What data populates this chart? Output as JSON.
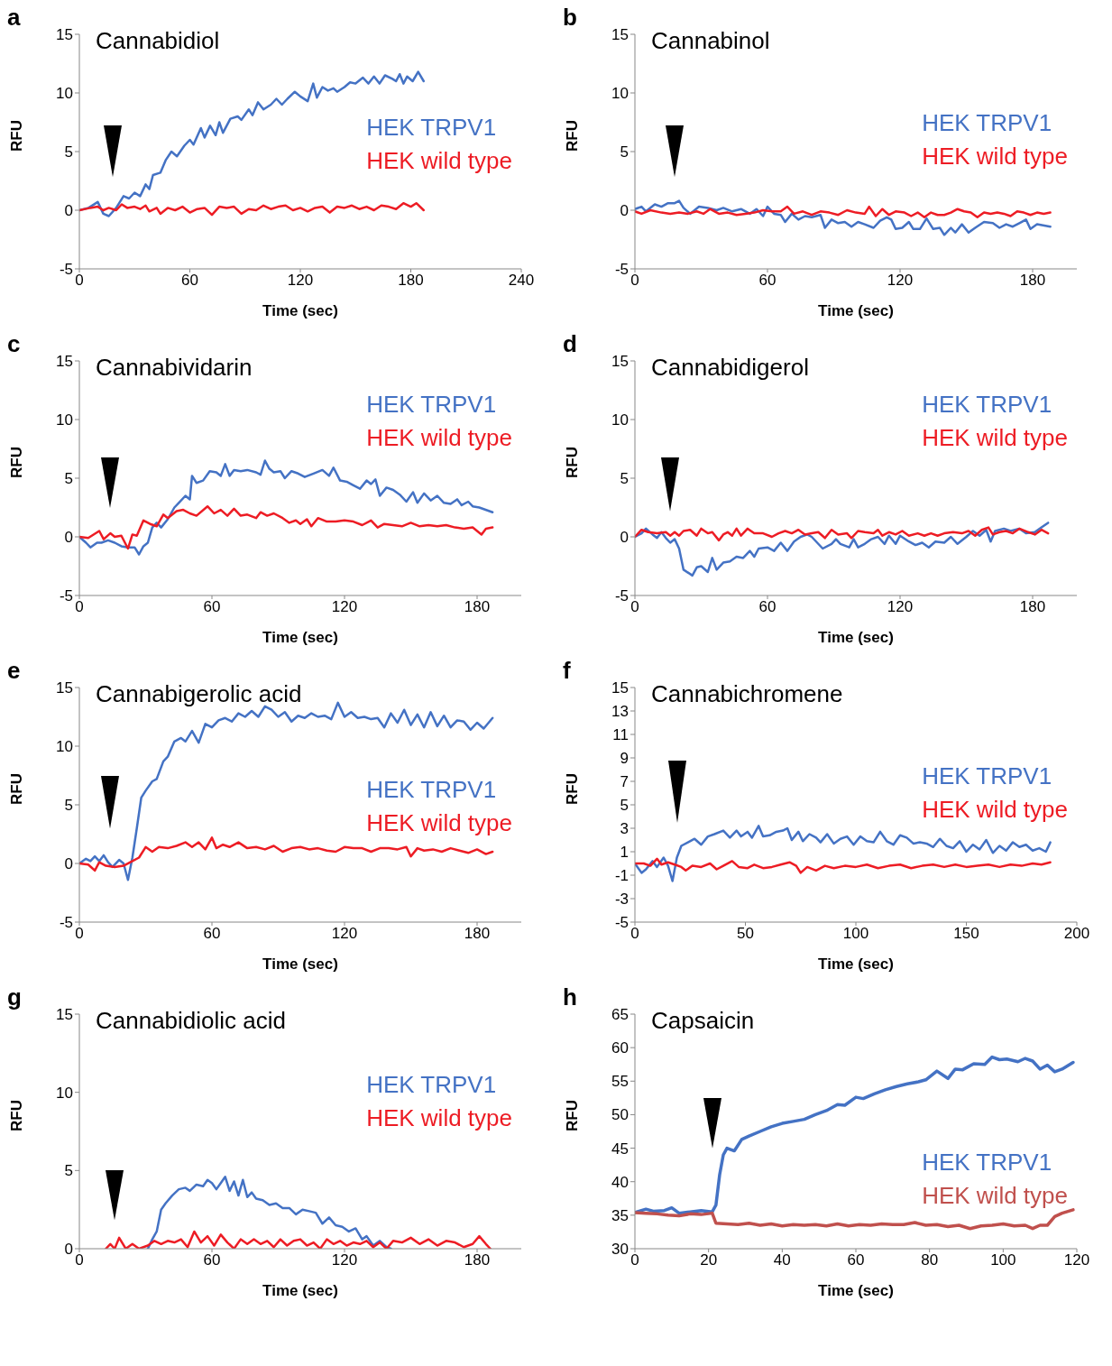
{
  "chart_data": [
    {
      "type": "line",
      "title": "Cannabidiol",
      "xlabel": "Time (sec)",
      "ylabel": "RFU",
      "annotations": [
        "a"
      ],
      "legend": "right",
      "xlim": [
        0,
        240
      ],
      "xticks": [
        0,
        60,
        120,
        180,
        240
      ],
      "ylim": [
        -5,
        15
      ],
      "yticks": [
        -5,
        0,
        5,
        10,
        15
      ],
      "series": [
        {
          "name": "HEK TRPV1",
          "color": "#4472c4",
          "x": [
            0,
            5,
            10,
            13,
            16,
            20,
            24,
            27,
            30,
            33,
            36,
            38,
            40,
            44,
            47,
            50,
            53,
            57,
            60,
            62,
            66,
            68,
            71,
            74,
            76,
            78,
            82,
            86,
            88,
            92,
            94,
            97,
            100,
            104,
            107,
            110,
            113,
            117,
            120,
            124,
            127,
            129,
            132,
            135,
            138,
            140,
            144,
            147,
            150,
            154,
            157,
            160,
            163,
            166,
            170,
            172,
            174,
            176,
            178,
            181,
            184,
            187
          ],
          "values": [
            0,
            0.2,
            0.7,
            -0.3,
            -0.5,
            0.2,
            1.2,
            1.0,
            1.5,
            1.2,
            2.2,
            1.8,
            3.0,
            3.2,
            4.3,
            5.0,
            4.6,
            5.5,
            6.0,
            5.6,
            7.0,
            6.2,
            7.2,
            6.4,
            7.5,
            6.6,
            7.8,
            8.0,
            7.7,
            8.6,
            8.1,
            9.2,
            8.6,
            9.0,
            9.5,
            9.0,
            9.5,
            10.1,
            9.7,
            9.3,
            10.8,
            9.6,
            10.5,
            10.2,
            10.4,
            10.1,
            10.5,
            10.9,
            10.8,
            11.3,
            10.8,
            11.4,
            10.8,
            11.5,
            11.2,
            11.0,
            11.6,
            10.8,
            11.4,
            11.0,
            11.8,
            11.0
          ]
        },
        {
          "name": "HEK wild type",
          "color": "#ed1c24",
          "x": [
            0,
            6,
            10,
            13,
            16,
            20,
            23,
            26,
            30,
            33,
            36,
            38,
            42,
            44,
            48,
            52,
            56,
            60,
            64,
            68,
            72,
            76,
            80,
            84,
            88,
            92,
            96,
            100,
            104,
            108,
            112,
            116,
            120,
            124,
            128,
            132,
            136,
            140,
            144,
            148,
            152,
            156,
            160,
            164,
            168,
            172,
            176,
            180,
            183,
            187
          ],
          "values": [
            0,
            0.2,
            0.3,
            0.0,
            0.2,
            0,
            0.5,
            0.2,
            0.3,
            0.1,
            0.4,
            -0.1,
            0.2,
            -0.3,
            0.2,
            0.0,
            0.3,
            -0.2,
            0.1,
            0.2,
            -0.4,
            0.3,
            0.2,
            0.3,
            -0.3,
            0.1,
            0.0,
            0.4,
            0.1,
            0.3,
            0.4,
            0.0,
            0.2,
            -0.1,
            0.2,
            0.3,
            -0.2,
            0.3,
            0.2,
            0.4,
            0.1,
            0.3,
            0.0,
            0.4,
            0.3,
            0.1,
            0.6,
            0.3,
            0.6,
            0.0
          ]
        }
      ]
    },
    {
      "type": "line",
      "title": "Cannabinol",
      "xlabel": "Time (sec)",
      "ylabel": "RFU",
      "annotations": [
        "b"
      ],
      "legend": "right",
      "xlim": [
        0,
        200
      ],
      "xticks": [
        0,
        60,
        120,
        180
      ],
      "ylim": [
        -5,
        15
      ],
      "yticks": [
        -5,
        0,
        5,
        10,
        15
      ],
      "series": [
        {
          "name": "HEK TRPV1",
          "color": "#4472c4",
          "x": [
            0,
            3,
            5,
            9,
            12,
            15,
            18,
            20,
            22,
            25,
            29,
            33,
            37,
            40,
            44,
            48,
            52,
            55,
            58,
            60,
            63,
            66,
            68,
            71,
            74,
            77,
            80,
            84,
            86,
            89,
            92,
            95,
            98,
            101,
            104,
            108,
            111,
            114,
            116,
            118,
            121,
            124,
            126,
            129,
            132,
            135,
            138,
            140,
            143,
            145,
            148,
            151,
            154,
            158,
            162,
            165,
            168,
            171,
            174,
            177,
            179,
            182,
            188
          ],
          "values": [
            0.1,
            0.3,
            -0.1,
            0.5,
            0.3,
            0.6,
            0.6,
            0.8,
            0.2,
            -0.3,
            0.3,
            0.2,
            0,
            0.2,
            -0.1,
            0.1,
            -0.3,
            0.1,
            -0.5,
            0.3,
            -0.3,
            -0.4,
            -1.0,
            -0.3,
            -0.8,
            -0.5,
            -0.6,
            -0.4,
            -1.5,
            -0.8,
            -1.1,
            -1.0,
            -1.4,
            -1.0,
            -1.2,
            -1.5,
            -0.9,
            -0.6,
            -0.8,
            -1.6,
            -1.5,
            -1.0,
            -1.6,
            -1.6,
            -0.7,
            -1.6,
            -1.5,
            -2.1,
            -1.5,
            -1.9,
            -1.2,
            -1.9,
            -1.5,
            -1.0,
            -1.1,
            -1.5,
            -1.2,
            -1.4,
            -1.1,
            -0.8,
            -1.6,
            -1.2,
            -1.4
          ]
        },
        {
          "name": "HEK wild type",
          "color": "#ed1c24",
          "x": [
            0,
            3,
            7,
            12,
            16,
            20,
            24,
            28,
            31,
            34,
            38,
            42,
            46,
            50,
            54,
            58,
            62,
            66,
            69,
            72,
            76,
            80,
            84,
            88,
            92,
            96,
            100,
            104,
            106,
            109,
            112,
            115,
            118,
            122,
            125,
            128,
            131,
            134,
            137,
            140,
            143,
            146,
            149,
            152,
            155,
            158,
            161,
            164,
            167,
            170,
            173,
            176,
            179,
            182,
            185,
            188
          ],
          "values": [
            -0.1,
            -0.3,
            0,
            -0.2,
            -0.3,
            -0.2,
            -0.3,
            -0.1,
            -0.3,
            0.1,
            -0.3,
            -0.2,
            -0.4,
            -0.3,
            -0.2,
            0,
            -0.1,
            -0.1,
            0.3,
            -0.3,
            -0.1,
            -0.4,
            -0.1,
            -0.2,
            -0.4,
            0,
            -0.2,
            -0.3,
            0.3,
            -0.5,
            0.1,
            -0.4,
            -0.1,
            -0.2,
            -0.5,
            -0.2,
            -0.6,
            -0.2,
            -0.4,
            -0.4,
            -0.2,
            0.1,
            -0.1,
            -0.2,
            -0.6,
            -0.2,
            -0.3,
            -0.2,
            -0.3,
            -0.5,
            -0.1,
            -0.2,
            -0.4,
            -0.2,
            -0.3,
            -0.2
          ]
        }
      ]
    },
    {
      "type": "line",
      "title": "Cannabividarin",
      "xlabel": "Time (sec)",
      "ylabel": "RFU",
      "annotations": [
        "c"
      ],
      "legend": "right",
      "xlim": [
        0,
        200
      ],
      "xticks": [
        0,
        60,
        120,
        180
      ],
      "ylim": [
        -5,
        15
      ],
      "yticks": [
        -5,
        0,
        5,
        10,
        15
      ],
      "series": [
        {
          "name": "HEK TRPV1",
          "color": "#4472c4",
          "x": [
            0,
            3,
            5,
            8,
            10,
            13,
            16,
            19,
            22,
            25,
            27,
            29,
            31,
            33,
            35,
            37,
            40,
            43,
            45,
            48,
            50,
            51,
            53,
            56,
            59,
            62,
            64,
            66,
            68,
            70,
            73,
            76,
            80,
            82,
            84,
            86,
            88,
            91,
            93,
            96,
            99,
            102,
            106,
            110,
            113,
            115,
            118,
            121,
            124,
            127,
            130,
            132,
            134,
            136,
            139,
            142,
            145,
            148,
            151,
            153,
            156,
            159,
            162,
            165,
            168,
            171,
            173,
            176,
            178,
            181,
            187
          ],
          "values": [
            0,
            -0.5,
            -0.9,
            -0.5,
            -0.5,
            -0.3,
            -0.5,
            -0.8,
            -0.9,
            -0.9,
            -1.5,
            -0.8,
            -0.5,
            0.8,
            1.2,
            0.8,
            1.5,
            2.5,
            2.9,
            3.5,
            3.2,
            5.2,
            4.6,
            4.8,
            5.6,
            5.5,
            5.2,
            6.2,
            5.2,
            5.7,
            5.6,
            5.7,
            5.5,
            5.3,
            6.5,
            5.8,
            5.5,
            5.6,
            5.0,
            5.6,
            5.4,
            5.1,
            5.4,
            5.7,
            5.2,
            5.9,
            4.8,
            4.7,
            4.4,
            4.1,
            4.8,
            4.5,
            4.9,
            3.5,
            4.2,
            4.0,
            3.6,
            3.0,
            3.8,
            2.9,
            3.7,
            3.1,
            3.5,
            2.9,
            2.8,
            3.2,
            2.7,
            3.0,
            2.6,
            2.5,
            2.1
          ]
        },
        {
          "name": "HEK wild type",
          "color": "#ed1c24",
          "x": [
            0,
            4,
            9,
            11,
            14,
            16,
            19,
            22,
            24,
            26,
            29,
            32,
            35,
            38,
            40,
            44,
            47,
            50,
            53,
            58,
            61,
            64,
            67,
            70,
            73,
            76,
            80,
            82,
            85,
            88,
            92,
            95,
            98,
            100,
            103,
            105,
            108,
            112,
            116,
            120,
            124,
            128,
            132,
            135,
            138,
            142,
            146,
            150,
            154,
            158,
            162,
            166,
            170,
            174,
            178,
            182,
            184,
            187
          ],
          "values": [
            0,
            -0.1,
            0.5,
            -0.2,
            0.3,
            0,
            0.1,
            -1.0,
            0.2,
            0.1,
            1.4,
            1.1,
            0.9,
            1.9,
            1.6,
            2.2,
            2.3,
            2.0,
            1.8,
            2.6,
            2.0,
            2.3,
            1.8,
            2.4,
            1.8,
            1.9,
            1.6,
            2.1,
            1.8,
            2.0,
            1.6,
            1.2,
            1.4,
            1.1,
            1.5,
            0.9,
            1.6,
            1.3,
            1.3,
            1.4,
            1.3,
            1.0,
            1.4,
            0.8,
            1.1,
            1.0,
            0.9,
            1.2,
            0.9,
            1.0,
            0.9,
            1.0,
            0.8,
            0.7,
            0.8,
            0.2,
            0.7,
            0.8
          ]
        }
      ]
    },
    {
      "type": "line",
      "title": "Cannabidigerol",
      "xlabel": "Time (sec)",
      "ylabel": "RFU",
      "annotations": [
        "d"
      ],
      "legend": "right",
      "xlim": [
        0,
        200
      ],
      "xticks": [
        0,
        60,
        120,
        180
      ],
      "ylim": [
        -5,
        15
      ],
      "yticks": [
        -5,
        0,
        5,
        10,
        15
      ],
      "series": [
        {
          "name": "HEK TRPV1",
          "color": "#4472c4",
          "x": [
            0,
            3,
            5,
            8,
            10,
            12,
            14,
            16,
            18,
            20,
            22,
            26,
            28,
            30,
            33,
            35,
            37,
            40,
            43,
            46,
            49,
            52,
            54,
            56,
            60,
            63,
            66,
            69,
            72,
            75,
            78,
            80,
            85,
            89,
            91,
            93,
            97,
            99,
            101,
            104,
            107,
            110,
            113,
            115,
            118,
            120,
            124,
            127,
            130,
            133,
            136,
            140,
            143,
            146,
            150,
            153,
            156,
            159,
            161,
            163,
            167,
            170,
            174,
            177,
            181,
            184,
            187
          ],
          "values": [
            0,
            0.3,
            0.7,
            0.2,
            -0.1,
            0.4,
            -0.1,
            -0.5,
            -0.2,
            -1.0,
            -2.8,
            -3.3,
            -2.6,
            -2.5,
            -3.0,
            -1.8,
            -2.8,
            -2.2,
            -2.1,
            -1.7,
            -1.8,
            -1.2,
            -1.7,
            -1.0,
            -0.9,
            -1.2,
            -0.5,
            -1.2,
            -0.4,
            0,
            0.2,
            0,
            -1.0,
            -0.6,
            -0.2,
            -0.6,
            -0.9,
            -0.2,
            -0.9,
            -0.6,
            -0.2,
            0,
            -0.6,
            0.1,
            -0.6,
            0.1,
            -0.4,
            -0.7,
            -0.5,
            -0.9,
            -0.4,
            -0.5,
            0,
            -0.6,
            0,
            0.5,
            0.1,
            0.6,
            -0.4,
            0.5,
            0.7,
            0.5,
            0.7,
            0.3,
            0.4,
            0.8,
            1.2
          ]
        },
        {
          "name": "HEK wild type",
          "color": "#ed1c24",
          "x": [
            0,
            3,
            6,
            10,
            14,
            16,
            18,
            20,
            22,
            25,
            28,
            30,
            33,
            35,
            38,
            40,
            42,
            44,
            46,
            48,
            51,
            54,
            58,
            62,
            65,
            68,
            71,
            74,
            77,
            80,
            83,
            86,
            89,
            92,
            96,
            98,
            101,
            104,
            108,
            110,
            112,
            115,
            118,
            121,
            124,
            128,
            131,
            134,
            137,
            140,
            144,
            148,
            151,
            154,
            157,
            160,
            162,
            165,
            168,
            171,
            174,
            178,
            181,
            184,
            187
          ],
          "values": [
            0,
            0.6,
            0.4,
            0.3,
            0.4,
            0.1,
            0.4,
            0.1,
            0.5,
            0.6,
            0.1,
            0.7,
            0.3,
            0.4,
            -0.3,
            0.2,
            0.4,
            0.1,
            0.7,
            0.1,
            0.7,
            0.3,
            0.3,
            0,
            0.3,
            0.5,
            0.3,
            0.6,
            0.2,
            0.3,
            0.4,
            -0.1,
            0.6,
            0.2,
            0.3,
            -0.1,
            0.5,
            0.4,
            0.3,
            0.6,
            0.1,
            0.4,
            0.2,
            0.5,
            0.1,
            0.3,
            0.1,
            0.3,
            0.1,
            0.3,
            0.4,
            0.3,
            0.5,
            0.1,
            0.6,
            0.8,
            0.2,
            0.4,
            0.5,
            0.3,
            0.7,
            0.4,
            0.2,
            0.6,
            0.3
          ]
        }
      ]
    },
    {
      "type": "line",
      "title": "Cannabigerolic acid",
      "xlabel": "Time (sec)",
      "ylabel": "RFU",
      "annotations": [
        "e"
      ],
      "legend": "right",
      "xlim": [
        0,
        200
      ],
      "xticks": [
        0,
        60,
        120,
        180
      ],
      "ylim": [
        -5,
        15
      ],
      "yticks": [
        -5,
        0,
        5,
        10,
        15
      ],
      "series": [
        {
          "name": "HEK TRPV1",
          "color": "#4472c4",
          "x": [
            0,
            3,
            5,
            7,
            9,
            11,
            13,
            15,
            18,
            20,
            22,
            24,
            26,
            28,
            30,
            33,
            35,
            38,
            40,
            43,
            46,
            48,
            51,
            54,
            57,
            60,
            63,
            66,
            69,
            72,
            75,
            78,
            81,
            84,
            87,
            90,
            93,
            96,
            99,
            102,
            105,
            108,
            111,
            114,
            117,
            120,
            123,
            126,
            129,
            132,
            135,
            138,
            141,
            144,
            147,
            150,
            153,
            156,
            159,
            162,
            165,
            168,
            171,
            174,
            177,
            180,
            183,
            187
          ],
          "values": [
            0,
            0.4,
            0.2,
            0.6,
            0.2,
            0.7,
            0.1,
            -0.3,
            0.3,
            0,
            -1.4,
            0.5,
            3.0,
            5.6,
            6.2,
            7.0,
            7.2,
            8.7,
            9.1,
            10.4,
            10.7,
            10.4,
            11.3,
            10.3,
            11.9,
            11.6,
            12.2,
            12.4,
            12.1,
            12.8,
            12.5,
            13.0,
            12.5,
            13.4,
            13.1,
            12.5,
            12.9,
            12.1,
            12.6,
            12.4,
            12.8,
            12.5,
            12.6,
            12.3,
            13.7,
            12.5,
            12.9,
            12.4,
            12.5,
            12.3,
            12.4,
            11.6,
            12.8,
            12.0,
            13.1,
            11.8,
            12.7,
            11.6,
            12.9,
            11.7,
            12.6,
            11.6,
            12.2,
            12.1,
            11.4,
            12.0,
            11.5,
            12.4
          ]
        },
        {
          "name": "HEK wild type",
          "color": "#ed1c24",
          "x": [
            0,
            4,
            7,
            9,
            12,
            16,
            20,
            24,
            27,
            30,
            33,
            36,
            40,
            44,
            48,
            51,
            54,
            57,
            60,
            62,
            65,
            68,
            72,
            76,
            80,
            84,
            88,
            92,
            96,
            100,
            104,
            108,
            112,
            116,
            120,
            124,
            128,
            132,
            136,
            140,
            144,
            148,
            150,
            153,
            156,
            160,
            164,
            168,
            172,
            176,
            180,
            184,
            187
          ],
          "values": [
            0,
            -0.1,
            -0.6,
            0.1,
            -0.2,
            -0.3,
            -0.2,
            0.2,
            0.5,
            1.4,
            1.0,
            1.4,
            1.3,
            1.5,
            1.8,
            1.4,
            1.8,
            1.2,
            2.2,
            1.3,
            1.6,
            1.4,
            1.8,
            1.3,
            1.4,
            1.2,
            1.5,
            1.0,
            1.3,
            1.4,
            1.2,
            1.3,
            1.1,
            1.0,
            1.4,
            1.3,
            1.3,
            1.0,
            1.3,
            1.3,
            1.2,
            1.4,
            0.6,
            1.3,
            1.1,
            1.2,
            1.0,
            1.3,
            1.1,
            0.9,
            1.2,
            0.8,
            1.0
          ]
        }
      ]
    },
    {
      "type": "line",
      "title": "Cannabichromene",
      "xlabel": "Time (sec)",
      "ylabel": "RFU",
      "annotations": [
        "f"
      ],
      "legend": "right",
      "xlim": [
        0,
        200
      ],
      "xticks": [
        0,
        50,
        100,
        150,
        200
      ],
      "ylim": [
        -5,
        15
      ],
      "yticks": [
        -5,
        -3,
        -1,
        1,
        3,
        5,
        7,
        9,
        11,
        13,
        15
      ],
      "series": [
        {
          "name": "HEK TRPV1",
          "color": "#4472c4",
          "x": [
            0,
            3,
            5,
            8,
            10,
            13,
            15,
            17,
            19,
            21,
            24,
            27,
            30,
            33,
            36,
            40,
            43,
            46,
            48,
            51,
            53,
            56,
            58,
            61,
            64,
            67,
            69,
            71,
            74,
            76,
            79,
            82,
            84,
            87,
            90,
            93,
            96,
            99,
            102,
            105,
            108,
            111,
            114,
            117,
            120,
            123,
            126,
            129,
            132,
            135,
            138,
            141,
            144,
            147,
            150,
            153,
            156,
            159,
            162,
            165,
            168,
            171,
            174,
            177,
            180,
            183,
            186,
            188
          ],
          "values": [
            0,
            -0.8,
            -0.5,
            0.2,
            -0.3,
            0.5,
            -0.2,
            -1.5,
            0.5,
            1.5,
            1.8,
            2.1,
            1.6,
            2.3,
            2.5,
            2.8,
            2.2,
            2.8,
            2.3,
            2.7,
            2.2,
            3.2,
            2.3,
            2.4,
            2.7,
            2.8,
            3.0,
            2.0,
            2.7,
            1.9,
            2.5,
            2.2,
            1.8,
            2.5,
            1.7,
            2.1,
            2.3,
            1.6,
            2.3,
            1.9,
            1.8,
            2.7,
            1.9,
            1.6,
            2.4,
            2.2,
            1.7,
            1.8,
            1.7,
            1.4,
            2.1,
            1.5,
            1.3,
            1.9,
            1.0,
            1.6,
            1.2,
            2.0,
            0.9,
            1.5,
            1.1,
            1.8,
            1.4,
            1.6,
            1.1,
            1.3,
            1.0,
            1.8
          ]
        },
        {
          "name": "HEK wild type",
          "color": "#ed1c24",
          "x": [
            0,
            4,
            7,
            10,
            12,
            15,
            18,
            21,
            23,
            26,
            30,
            34,
            37,
            40,
            44,
            47,
            51,
            54,
            58,
            62,
            66,
            70,
            73,
            75,
            78,
            82,
            86,
            90,
            95,
            100,
            105,
            110,
            115,
            120,
            125,
            130,
            135,
            140,
            145,
            150,
            155,
            160,
            165,
            170,
            175,
            180,
            184,
            188
          ],
          "values": [
            0,
            0,
            -0.2,
            0.4,
            -0.1,
            0.1,
            -0.1,
            -0.3,
            -0.6,
            -0.2,
            -0.3,
            0,
            -0.5,
            -0.2,
            0.2,
            -0.3,
            -0.4,
            -0.1,
            -0.4,
            -0.3,
            -0.1,
            0.1,
            -0.2,
            -0.8,
            -0.3,
            -0.6,
            -0.2,
            -0.4,
            -0.2,
            -0.3,
            -0.1,
            -0.4,
            -0.2,
            -0.1,
            -0.4,
            -0.2,
            -0.1,
            -0.3,
            -0.1,
            -0.3,
            -0.2,
            -0.1,
            -0.3,
            -0.1,
            -0.2,
            0,
            -0.1,
            0.1
          ]
        }
      ]
    },
    {
      "type": "line",
      "title": "Cannabidiolic acid",
      "xlabel": "Time (sec)",
      "ylabel": "RFU",
      "annotations": [
        "g"
      ],
      "legend": "right",
      "xlim": [
        0,
        200
      ],
      "xticks": [
        0,
        60,
        120,
        180
      ],
      "ylim": [
        0,
        15
      ],
      "yticks": [
        0,
        5,
        10,
        15
      ],
      "series": [
        {
          "name": "HEK TRPV1",
          "color": "#4472c4",
          "x": [
            31,
            33,
            35,
            37,
            39,
            42,
            45,
            48,
            50,
            53,
            56,
            58,
            60,
            62,
            64,
            66,
            68,
            70,
            72,
            74,
            76,
            78,
            80,
            83,
            86,
            89,
            92,
            95,
            98,
            101,
            104,
            107,
            110,
            113,
            116,
            119,
            122,
            125,
            128,
            130,
            133,
            136,
            139,
            141
          ],
          "values": [
            0,
            0.6,
            1.1,
            2.5,
            2.9,
            3.4,
            3.8,
            3.9,
            3.7,
            4.1,
            4.0,
            4.4,
            4.2,
            3.8,
            4.2,
            4.6,
            3.7,
            4.3,
            3.4,
            4.4,
            3.3,
            3.6,
            3.2,
            3.1,
            2.8,
            2.9,
            2.6,
            2.6,
            2.2,
            2.5,
            2.4,
            2.3,
            1.6,
            2.0,
            1.5,
            1.4,
            1.1,
            1.3,
            0.6,
            0.8,
            0.2,
            0.5,
            0.1,
            0
          ]
        },
        {
          "name": "HEK wild type",
          "color": "#ed1c24",
          "x": [
            12,
            14,
            16,
            18,
            21,
            24,
            27,
            31,
            34,
            37,
            40,
            43,
            46,
            49,
            52,
            55,
            58,
            61,
            64,
            67,
            70,
            73,
            76,
            79,
            82,
            85,
            88,
            91,
            94,
            97,
            100,
            103,
            106,
            109,
            112,
            115,
            118,
            121,
            124,
            127,
            130,
            133,
            136,
            139,
            142,
            146,
            150,
            154,
            158,
            162,
            166,
            170,
            174,
            178,
            181,
            184,
            186
          ],
          "values": [
            0,
            0.3,
            0,
            0.7,
            0,
            0.3,
            0,
            0.2,
            0.5,
            0.3,
            0.5,
            0.4,
            0.6,
            0.1,
            1.1,
            0.4,
            0.8,
            0.2,
            0.9,
            0.4,
            0,
            0.6,
            0.3,
            0.6,
            0.3,
            0.5,
            0.1,
            0.6,
            0.2,
            0.5,
            0.6,
            0.2,
            0.4,
            0,
            0.6,
            0.3,
            0.5,
            0.2,
            0.4,
            0.3,
            0.5,
            0.1,
            0.4,
            0,
            0.5,
            0.4,
            0.7,
            0.3,
            0.6,
            0.2,
            0.5,
            0.4,
            0.1,
            0.3,
            0.8,
            0.3,
            0
          ]
        }
      ]
    },
    {
      "type": "line",
      "title": "Capsaicin",
      "xlabel": "Time (sec)",
      "ylabel": "RFU",
      "annotations": [
        "h"
      ],
      "legend": "bottom right",
      "xlim": [
        0,
        120
      ],
      "xticks": [
        0,
        20,
        40,
        60,
        80,
        100,
        120
      ],
      "ylim": [
        30,
        65
      ],
      "yticks": [
        30,
        35,
        40,
        45,
        50,
        55,
        60,
        65
      ],
      "series": [
        {
          "name": "HEK TRPV1",
          "color": "#4472c4",
          "x": [
            0,
            3,
            5,
            8,
            10,
            12,
            15,
            18,
            21,
            22,
            23,
            24,
            25,
            27,
            29,
            31,
            34,
            37,
            40,
            43,
            46,
            49,
            52,
            55,
            57,
            60,
            62,
            65,
            68,
            71,
            74,
            77,
            79,
            82,
            85,
            87,
            89,
            92,
            95,
            97,
            99,
            101,
            104,
            106,
            108,
            110,
            112,
            114,
            116,
            119
          ],
          "values": [
            35.4,
            35.9,
            35.6,
            35.7,
            36.1,
            35.3,
            35.5,
            35.7,
            35.5,
            36.5,
            41,
            44,
            45,
            44.6,
            46.3,
            46.8,
            47.5,
            48.2,
            48.7,
            49.0,
            49.3,
            50.0,
            50.6,
            51.5,
            51.4,
            52.6,
            52.4,
            53.1,
            53.7,
            54.2,
            54.6,
            54.9,
            55.2,
            56.5,
            55.4,
            56.8,
            56.7,
            57.6,
            57.5,
            58.6,
            58.2,
            58.3,
            57.9,
            58.4,
            58.0,
            56.8,
            57.4,
            56.4,
            56.8,
            57.8
          ]
        },
        {
          "name": "HEK wild type",
          "color": "#c0504d",
          "x": [
            0,
            3,
            6,
            9,
            12,
            15,
            18,
            21,
            22,
            25,
            28,
            31,
            34,
            37,
            40,
            43,
            46,
            49,
            52,
            55,
            58,
            61,
            64,
            67,
            70,
            73,
            76,
            79,
            82,
            85,
            88,
            91,
            94,
            97,
            100,
            103,
            106,
            108,
            110,
            112,
            114,
            116,
            119
          ],
          "values": [
            35.4,
            35.3,
            35.2,
            35.0,
            34.9,
            35.2,
            35.1,
            35.3,
            33.8,
            33.7,
            33.6,
            33.8,
            33.5,
            33.7,
            33.4,
            33.6,
            33.5,
            33.6,
            33.4,
            33.7,
            33.4,
            33.6,
            33.5,
            33.7,
            33.6,
            33.6,
            33.9,
            33.5,
            33.6,
            33.3,
            33.5,
            33.0,
            33.4,
            33.5,
            33.7,
            33.4,
            33.5,
            33.0,
            33.5,
            33.5,
            34.8,
            35.3,
            35.8
          ]
        }
      ]
    }
  ]
}
